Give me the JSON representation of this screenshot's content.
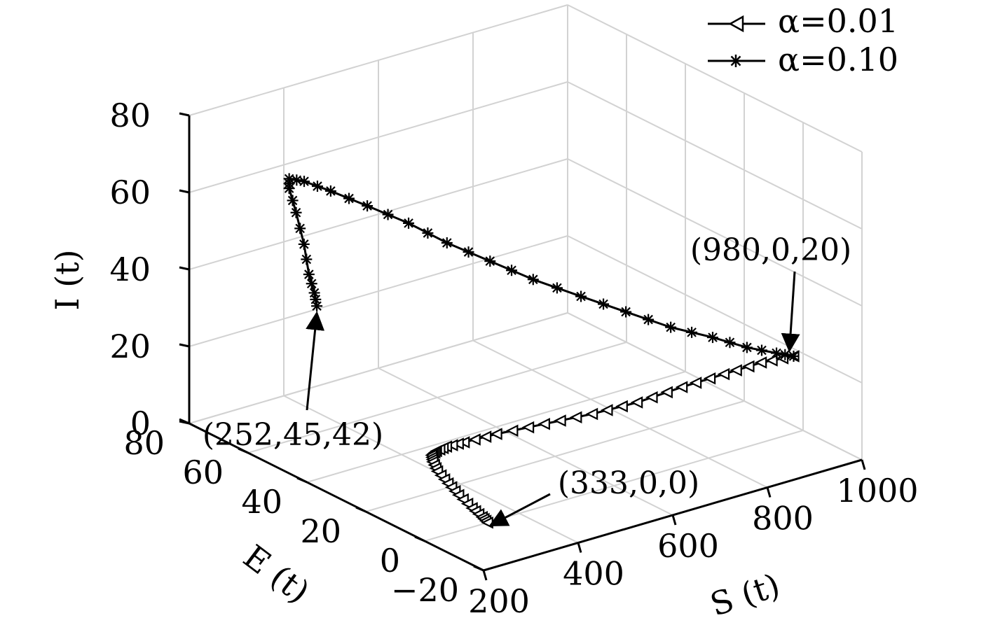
{
  "chart_data": {
    "type": "line",
    "projection": "3d",
    "xlabel": "S (t)",
    "ylabel": "E (t)",
    "zlabel": "I (t)",
    "xlim": [
      200,
      1000
    ],
    "ylim": [
      -20,
      80
    ],
    "zlim": [
      0,
      80
    ],
    "xticks": [
      "200",
      "400",
      "600",
      "800",
      "1000"
    ],
    "yticks": [
      "-20",
      "0",
      "20",
      "40",
      "60",
      "80"
    ],
    "zticks": [
      "0",
      "20",
      "40",
      "60",
      "80"
    ],
    "grid": true,
    "legend_position": "top-right",
    "series": [
      {
        "name": "α=0.01",
        "marker": "triangle-left",
        "color": "#000000",
        "points": [
          [
            980,
            0,
            20
          ],
          [
            930,
            3,
            19
          ],
          [
            870,
            6,
            17
          ],
          [
            800,
            9,
            15
          ],
          [
            730,
            13,
            12
          ],
          [
            660,
            17,
            10
          ],
          [
            590,
            22,
            8
          ],
          [
            520,
            27,
            6
          ],
          [
            470,
            30,
            4.5
          ],
          [
            445,
            32,
            3.5
          ],
          [
            430,
            33,
            2.5
          ],
          [
            420,
            33,
            1.8
          ],
          [
            410,
            31,
            1.2
          ],
          [
            395,
            27,
            0.8
          ],
          [
            380,
            21,
            0.5
          ],
          [
            365,
            15,
            0.3
          ],
          [
            350,
            8,
            0.1
          ],
          [
            340,
            3,
            0.05
          ],
          [
            333,
            0,
            0
          ]
        ]
      },
      {
        "name": "α=0.10",
        "marker": "asterisk",
        "color": "#000000",
        "points": [
          [
            980,
            0,
            20
          ],
          [
            950,
            1,
            21.5
          ],
          [
            900,
            3,
            24
          ],
          [
            840,
            5,
            28
          ],
          [
            770,
            8,
            32
          ],
          [
            700,
            12,
            37
          ],
          [
            630,
            16,
            42
          ],
          [
            560,
            21,
            47
          ],
          [
            500,
            26,
            52
          ],
          [
            440,
            31,
            57
          ],
          [
            390,
            36,
            62
          ],
          [
            340,
            42,
            66
          ],
          [
            300,
            48,
            69
          ],
          [
            275,
            53,
            70.5
          ],
          [
            262,
            56,
            70.5
          ],
          [
            262,
            56,
            68
          ],
          [
            258,
            53,
            63
          ],
          [
            256,
            50,
            56
          ],
          [
            254,
            48,
            49
          ],
          [
            253,
            46,
            45
          ],
          [
            252,
            45,
            42
          ]
        ]
      }
    ],
    "annotations": [
      {
        "text": "(980,0,20)",
        "point": [
          980,
          0,
          20
        ]
      },
      {
        "text": "(252,45,42)",
        "point": [
          252,
          45,
          42
        ]
      },
      {
        "text": "(333,0,0)",
        "point": [
          333,
          0,
          0
        ]
      }
    ]
  }
}
